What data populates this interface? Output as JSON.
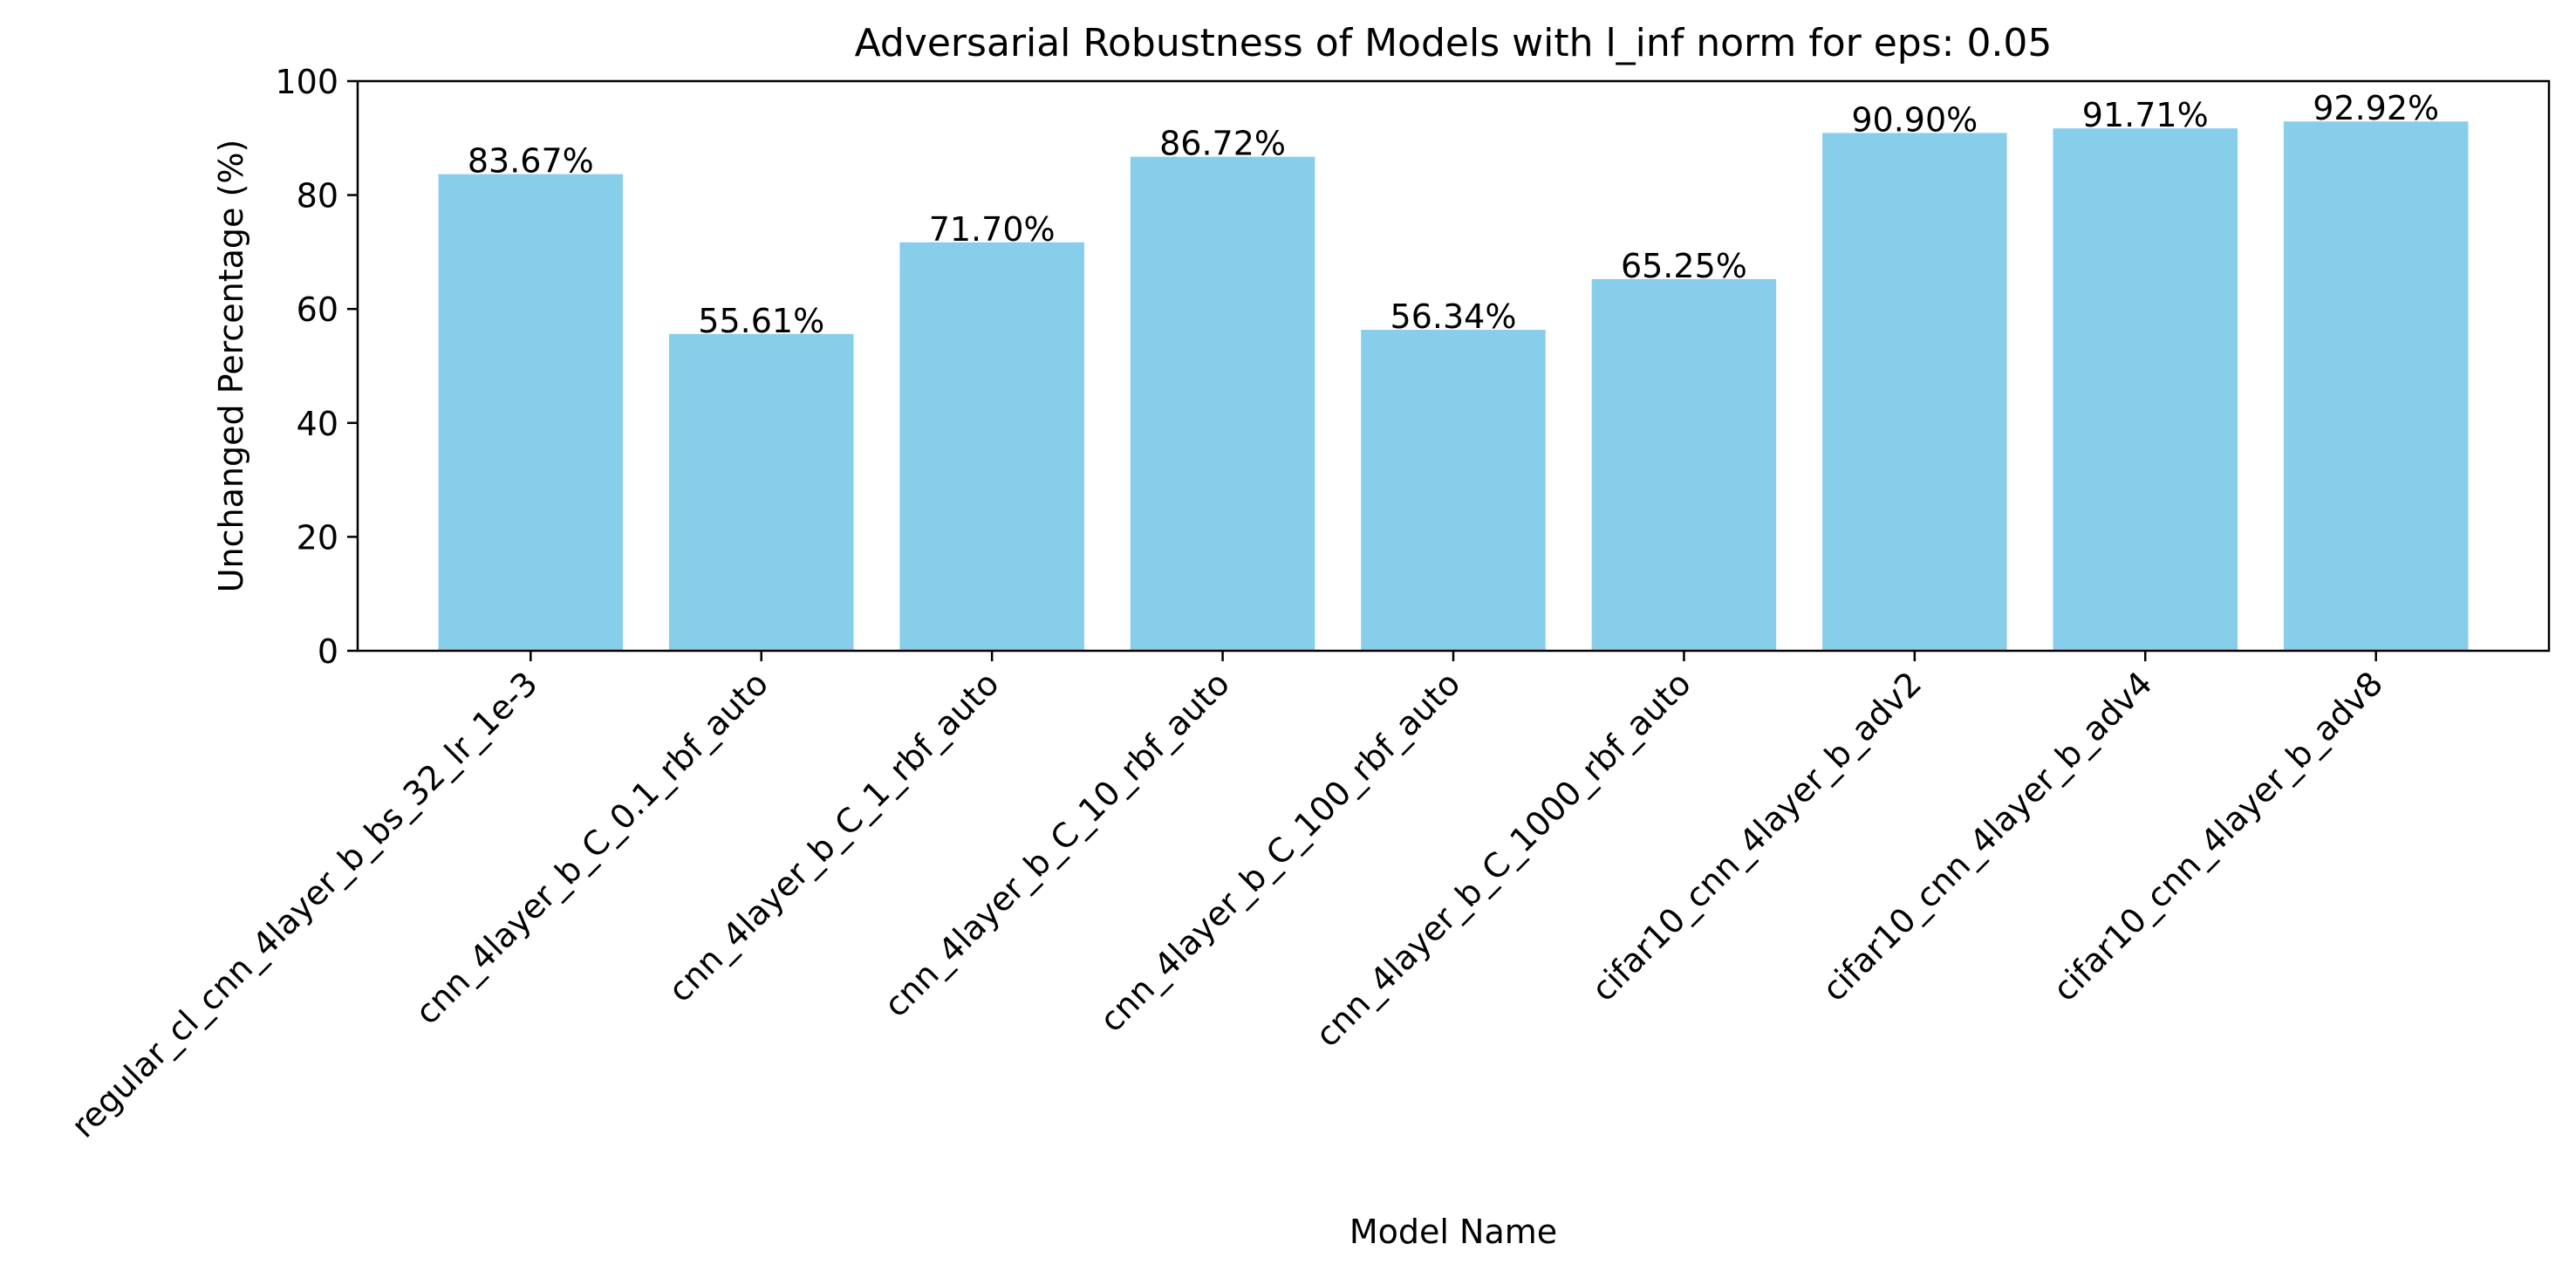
{
  "chart_data": {
    "type": "bar",
    "title": "Adversarial Robustness of Models with l_inf norm for eps: 0.05",
    "xlabel": "Model Name",
    "ylabel": "Unchanged Percentage (%)",
    "ylim": [
      0,
      100
    ],
    "yticks": [
      0,
      20,
      40,
      60,
      80,
      100
    ],
    "ytick_labels": [
      "0",
      "20",
      "40",
      "60",
      "80",
      "100"
    ],
    "categories": [
      "regular_cl_cnn_4layer_b_bs_32_lr_1e-3",
      "cnn_4layer_b_C_0.1_rbf_auto",
      "cnn_4layer_b_C_1_rbf_auto",
      "cnn_4layer_b_C_10_rbf_auto",
      "cnn_4layer_b_C_100_rbf_auto",
      "cnn_4layer_b_C_1000_rbf_auto",
      "cifar10_cnn_4layer_b_adv2",
      "cifar10_cnn_4layer_b_adv4",
      "cifar10_cnn_4layer_b_adv8"
    ],
    "values": [
      83.67,
      55.61,
      71.7,
      86.72,
      56.34,
      65.25,
      90.9,
      91.71,
      92.92
    ],
    "data_labels": [
      "83.67%",
      "55.61%",
      "71.70%",
      "86.72%",
      "56.34%",
      "65.25%",
      "90.90%",
      "91.71%",
      "92.92%"
    ],
    "bar_color": "#87CEEB",
    "grid": false,
    "legend": "none"
  }
}
